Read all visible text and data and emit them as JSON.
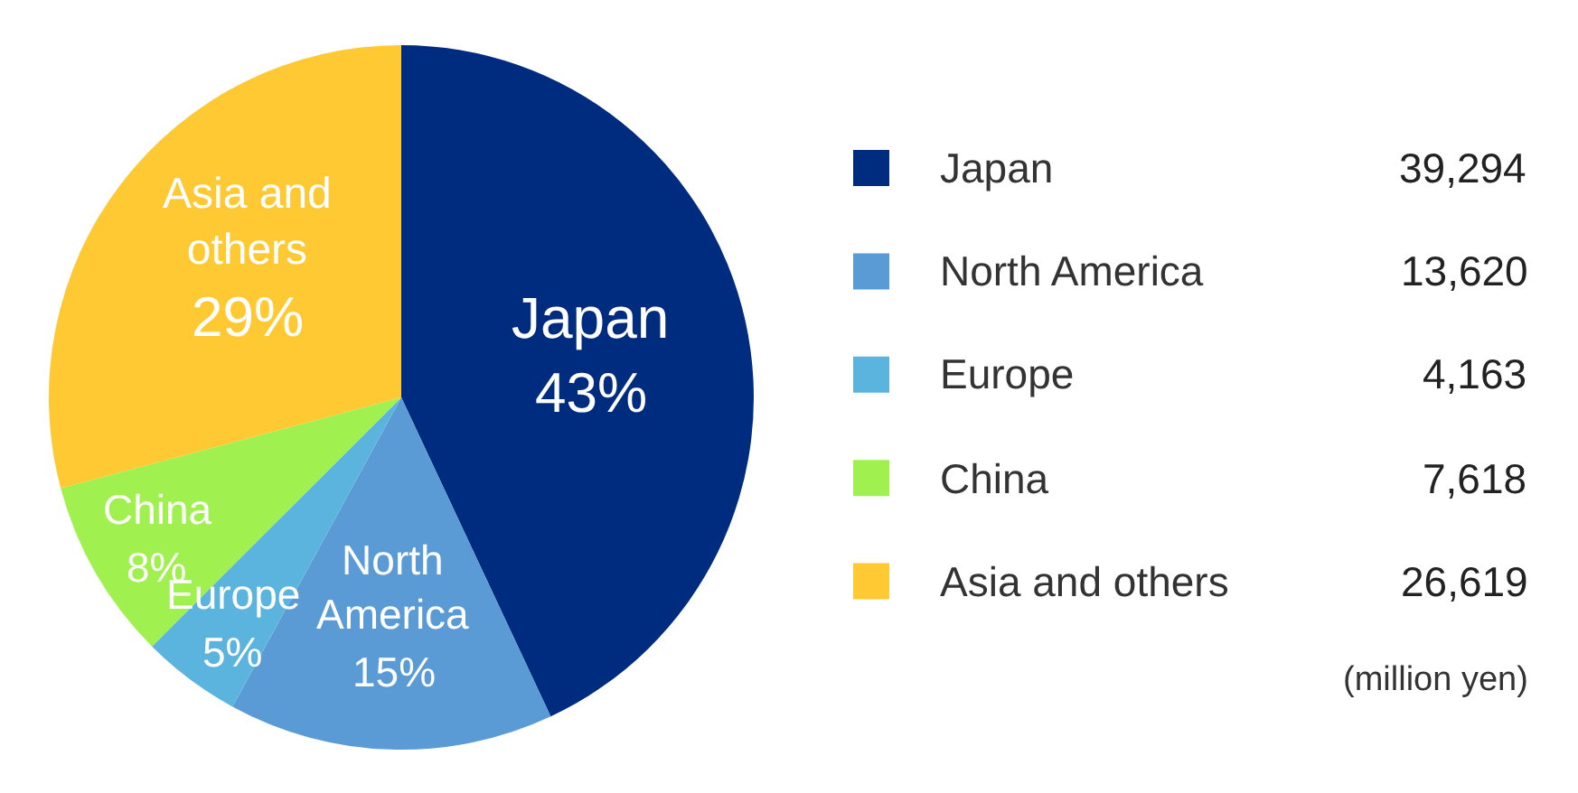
{
  "chart_data": {
    "type": "pie",
    "categories": [
      "Japan",
      "North America",
      "Europe",
      "China",
      "Asia and others"
    ],
    "values": [
      39294,
      13620,
      4163,
      7618,
      26619
    ],
    "colors": [
      "#002c7f",
      "#5b9bd5",
      "#5ab4de",
      "#a0f050",
      "#ffc933"
    ],
    "value_labels": [
      "39,294",
      "13,620",
      "4,163",
      "7,618",
      "26,619"
    ],
    "legend": "right",
    "annotations": [
      {
        "text": "43%",
        "x": "Japan"
      },
      {
        "text": "15%",
        "x": "North America"
      },
      {
        "text": "5%",
        "x": "Europe"
      },
      {
        "text": "8%",
        "x": "China"
      },
      {
        "text": "29%",
        "x": "Asia and others"
      },
      "(million yen)"
    ]
  }
}
